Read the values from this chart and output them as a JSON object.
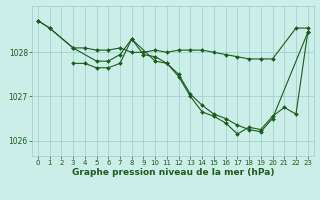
{
  "background_color": "#cceee8",
  "plot_bg_color": "#cceee8",
  "line_color": "#1a5c1a",
  "marker_color": "#1a5c1a",
  "grid_color": "#99cccc",
  "xlabel": "Graphe pression niveau de la mer (hPa)",
  "xlabel_color": "#1a5c1a",
  "xlabel_fontsize": 6.5,
  "tick_color": "#1a5c1a",
  "tick_fontsize": 5.0,
  "xlim": [
    -0.5,
    23.5
  ],
  "ylim": [
    1025.65,
    1029.05
  ],
  "yticks": [
    1026,
    1027,
    1028
  ],
  "xticks": [
    0,
    1,
    2,
    3,
    4,
    5,
    6,
    7,
    8,
    9,
    10,
    11,
    12,
    13,
    14,
    15,
    16,
    17,
    18,
    19,
    20,
    21,
    22,
    23
  ],
  "series": [
    {
      "x": [
        0,
        1,
        3,
        4,
        5,
        6,
        7,
        8,
        9,
        10,
        11,
        12,
        13,
        14,
        15,
        16,
        17,
        18,
        19,
        20,
        22,
        23
      ],
      "y": [
        1028.72,
        1028.55,
        1028.1,
        1028.1,
        1028.05,
        1028.05,
        1028.1,
        1028.0,
        1028.0,
        1028.05,
        1028.0,
        1028.05,
        1028.05,
        1028.05,
        1028.0,
        1027.95,
        1027.9,
        1027.85,
        1027.85,
        1027.85,
        1028.55,
        1028.55
      ]
    },
    {
      "x": [
        0,
        1,
        3,
        5,
        6,
        7,
        8,
        9,
        10,
        11,
        12,
        13,
        14,
        15,
        16,
        17,
        18,
        19,
        20,
        23
      ],
      "y": [
        1028.72,
        1028.55,
        1028.1,
        1027.8,
        1027.8,
        1027.95,
        1028.3,
        1027.95,
        1027.9,
        1027.75,
        1027.5,
        1027.05,
        1026.8,
        1026.6,
        1026.5,
        1026.35,
        1026.25,
        1026.2,
        1026.5,
        1028.45
      ]
    },
    {
      "x": [
        3,
        4,
        5,
        6,
        7,
        8,
        10,
        11,
        12,
        13,
        14,
        15,
        16,
        17,
        18,
        19,
        20,
        21,
        22,
        23
      ],
      "y": [
        1027.75,
        1027.75,
        1027.65,
        1027.65,
        1027.75,
        1028.3,
        1027.8,
        1027.75,
        1027.45,
        1027.0,
        1026.65,
        1026.55,
        1026.4,
        1026.15,
        1026.3,
        1026.25,
        1026.55,
        1026.75,
        1026.6,
        1028.45
      ]
    }
  ]
}
